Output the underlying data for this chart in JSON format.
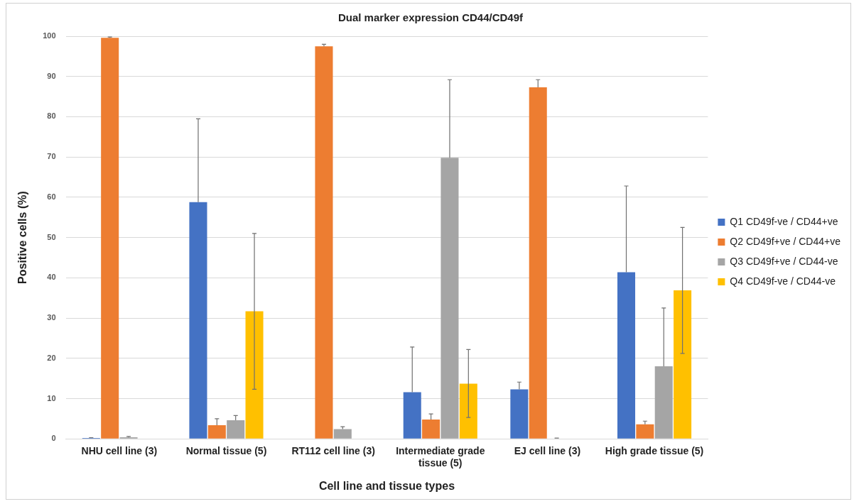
{
  "chart_data": {
    "type": "bar",
    "title": "Dual marker expression CD44/CD49f",
    "xlabel": "Cell line and tissue types",
    "ylabel": "Positive cells (%)",
    "categories": [
      "NHU cell line (3)",
      "Normal tissue (5)",
      "RT112 cell line (3)",
      "Intermediate grade tissue (5)",
      "EJ cell line (3)",
      "High grade tissue (5)"
    ],
    "series": [
      {
        "name": "Q1 CD49f-ve / CD44+ve",
        "color": "#4472c4",
        "values": [
          0.2,
          58.8,
          null,
          11.6,
          12.3,
          41.4
        ],
        "errors": [
          [
            0.2,
            0.3
          ],
          [
            58.8,
            79.5
          ],
          null,
          [
            11.6,
            22.8
          ],
          [
            12.3,
            14.1
          ],
          [
            41.4,
            62.8
          ]
        ]
      },
      {
        "name": "Q2 CD49f+ve / CD44+ve",
        "color": "#ed7d31",
        "values": [
          99.6,
          3.4,
          97.5,
          4.8,
          87.3,
          3.6
        ],
        "errors": [
          [
            99.6,
            99.8
          ],
          [
            3.4,
            5.0
          ],
          [
            97.5,
            98.0
          ],
          [
            4.8,
            6.2
          ],
          [
            87.3,
            89.2
          ],
          [
            3.6,
            4.4
          ]
        ]
      },
      {
        "name": "Q3 CD49f+ve / CD44-ve",
        "color": "#a5a5a5",
        "values": [
          0.4,
          4.6,
          2.4,
          69.8,
          0.1,
          18.0
        ],
        "errors": [
          [
            0.4,
            0.6
          ],
          [
            4.6,
            5.8
          ],
          [
            2.4,
            3.0
          ],
          [
            69.8,
            89.2
          ],
          [
            0.1,
            0.2
          ],
          [
            18.0,
            32.5
          ]
        ]
      },
      {
        "name": "Q4 CD49f-ve / CD44-ve",
        "color": "#ffc000",
        "values": [
          null,
          31.7,
          null,
          13.7,
          null,
          36.9
        ],
        "errors": [
          null,
          [
            12.3,
            51.0
          ],
          null,
          [
            5.3,
            22.2
          ],
          null,
          [
            21.2,
            52.5
          ]
        ]
      }
    ],
    "ylim": [
      0,
      100
    ],
    "yticks": [
      0,
      10,
      20,
      30,
      40,
      50,
      60,
      70,
      80,
      90,
      100
    ],
    "grid": "y",
    "legend": "right"
  }
}
